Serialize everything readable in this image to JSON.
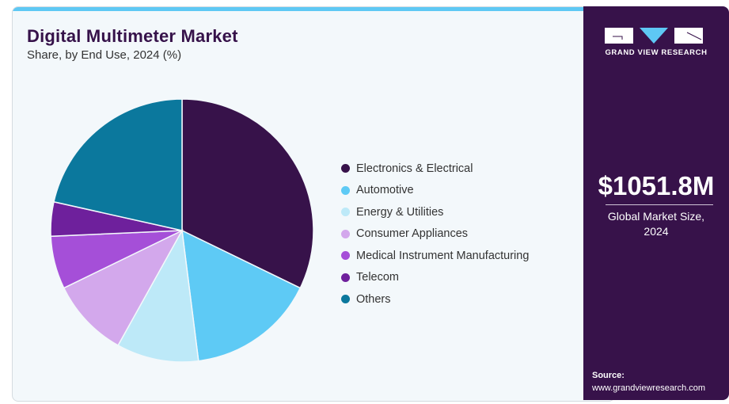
{
  "header": {
    "title": "Digital Multimeter Market",
    "subtitle": "Share, by End Use, 2024 (%)"
  },
  "sidebar": {
    "brand": "GRAND VIEW RESEARCH",
    "market_size": "$1051.8M",
    "market_desc_line1": "Global Market Size,",
    "market_desc_line2": "2024",
    "source_label": "Source:",
    "source_url": "www.grandviewresearch.com"
  },
  "colors": {
    "accent": "#5ec8f4",
    "brand_dark": "#37124a"
  },
  "chart_data": {
    "type": "pie",
    "title": "Digital Multimeter Market",
    "subtitle": "Share, by End Use, 2024 (%)",
    "start_angle_deg": 0,
    "direction": "clockwise",
    "legend_position": "right",
    "slices": [
      {
        "label": "Electronics & Electrical",
        "value": 32.2,
        "color": "#37124a"
      },
      {
        "label": "Automotive",
        "value": 15.8,
        "color": "#5ecaf5"
      },
      {
        "label": "Energy & Utilities",
        "value": 10.1,
        "color": "#bde9f8"
      },
      {
        "label": "Consumer Appliances",
        "value": 9.7,
        "color": "#d3a8ec"
      },
      {
        "label": "Medical Instrument Manufacturing",
        "value": 6.5,
        "color": "#a54fd8"
      },
      {
        "label": "Telecom",
        "value": 4.2,
        "color": "#6e209c"
      },
      {
        "label": "Others",
        "value": 21.5,
        "color": "#0b789d"
      }
    ]
  }
}
